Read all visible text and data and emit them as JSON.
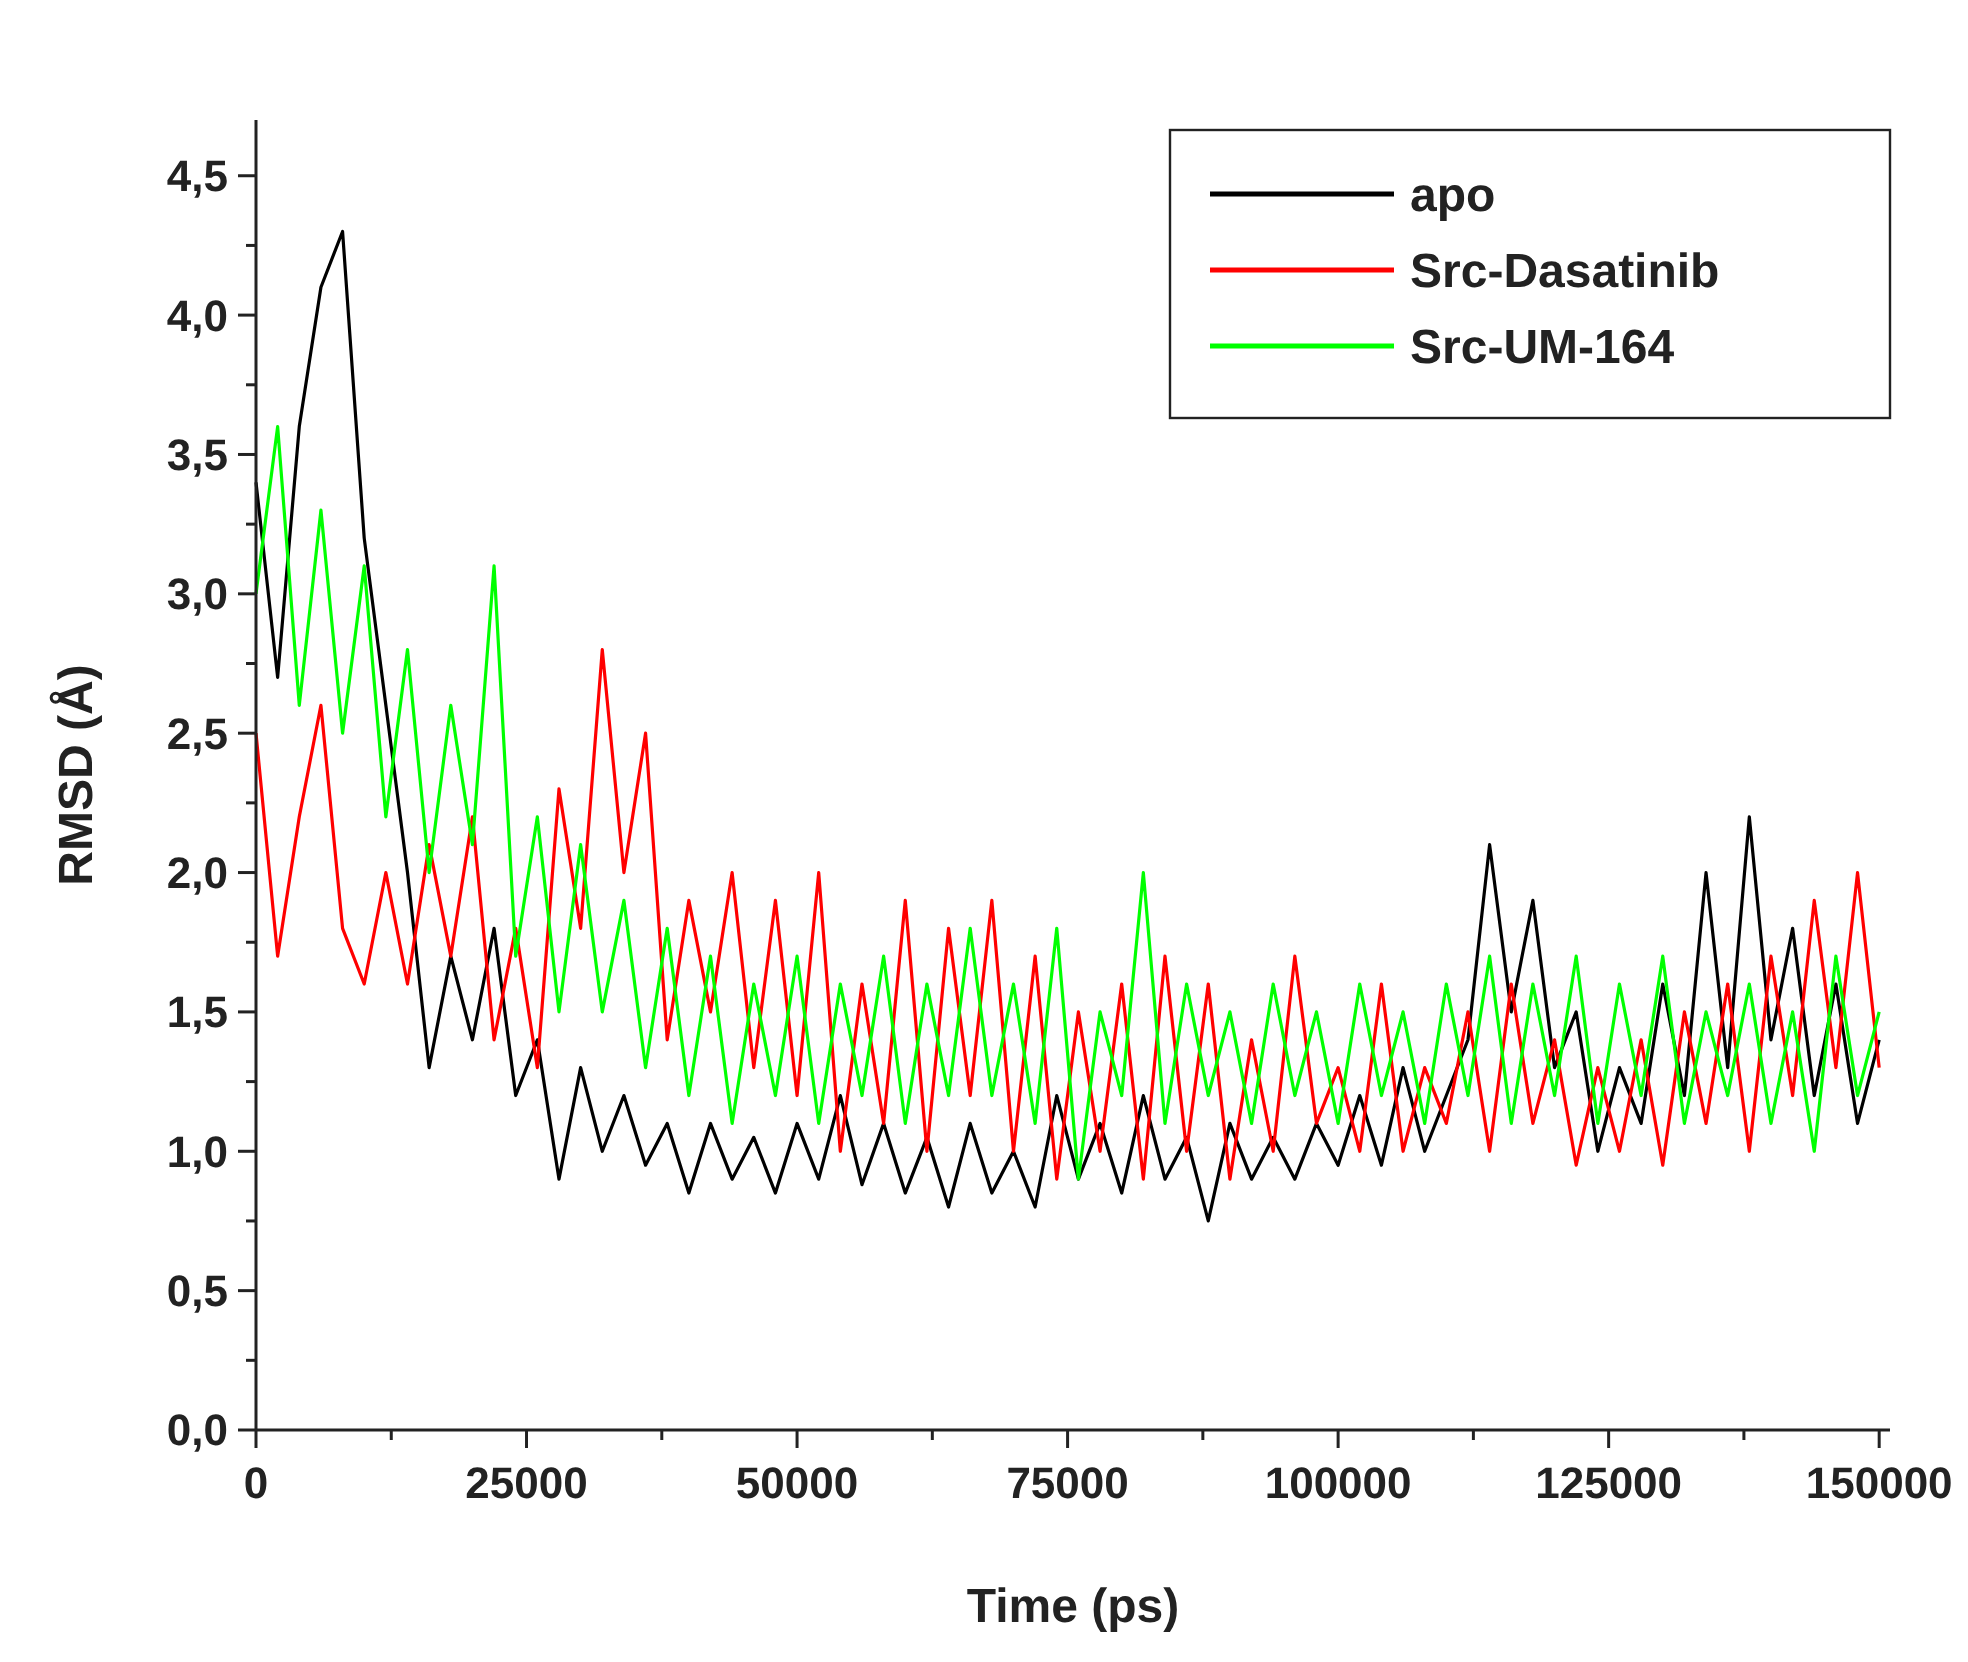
{
  "chart_data": {
    "type": "line",
    "xlabel": "Time (ps)",
    "ylabel": "RMSD (Å)",
    "xlim": [
      0,
      151000
    ],
    "ylim": [
      0,
      4.7
    ],
    "xticks": [
      0,
      {
        "value": 12500,
        "label": null
      },
      25000,
      {
        "value": 37500,
        "label": null
      },
      50000,
      {
        "value": 62500,
        "label": null
      },
      75000,
      {
        "value": 87500,
        "label": null
      },
      100000,
      {
        "value": 112500,
        "label": null
      },
      125000,
      {
        "value": 137500,
        "label": null
      },
      150000
    ],
    "yticks": [
      {
        "value": 0,
        "label": "0,0"
      },
      {
        "value": 0.25,
        "label": null
      },
      {
        "value": 0.5,
        "label": "0,5"
      },
      {
        "value": 0.75,
        "label": null
      },
      {
        "value": 1,
        "label": "1,0"
      },
      {
        "value": 1.25,
        "label": null
      },
      {
        "value": 1.5,
        "label": "1,5"
      },
      {
        "value": 1.75,
        "label": null
      },
      {
        "value": 2,
        "label": "2,0"
      },
      {
        "value": 2.25,
        "label": null
      },
      {
        "value": 2.5,
        "label": "2,5"
      },
      {
        "value": 2.75,
        "label": null
      },
      {
        "value": 3,
        "label": "3,0"
      },
      {
        "value": 3.25,
        "label": null
      },
      {
        "value": 3.5,
        "label": "3,5"
      },
      {
        "value": 3.75,
        "label": null
      },
      {
        "value": 4,
        "label": "4,0"
      },
      {
        "value": 4.25,
        "label": null
      },
      {
        "value": 4.5,
        "label": "4,5"
      }
    ],
    "grid": false,
    "legend": "top right",
    "marker": "none",
    "line_style": "solid",
    "x": [
      0,
      2000,
      4000,
      6000,
      8000,
      10000,
      12000,
      14000,
      16000,
      18000,
      20000,
      22000,
      24000,
      26000,
      28000,
      30000,
      32000,
      34000,
      36000,
      38000,
      40000,
      42000,
      44000,
      46000,
      48000,
      50000,
      52000,
      54000,
      56000,
      58000,
      60000,
      62000,
      64000,
      66000,
      68000,
      70000,
      72000,
      74000,
      76000,
      78000,
      80000,
      82000,
      84000,
      86000,
      88000,
      90000,
      92000,
      94000,
      96000,
      98000,
      100000,
      102000,
      104000,
      106000,
      108000,
      110000,
      112000,
      114000,
      116000,
      118000,
      120000,
      122000,
      124000,
      126000,
      128000,
      130000,
      132000,
      134000,
      136000,
      138000,
      140000,
      142000,
      144000,
      146000,
      148000,
      150000
    ],
    "series": [
      {
        "name": "apo",
        "color": "#000000",
        "values": [
          3.4,
          2.7,
          3.6,
          4.1,
          4.3,
          3.2,
          2.6,
          2.0,
          1.3,
          1.7,
          1.4,
          1.8,
          1.2,
          1.4,
          0.9,
          1.3,
          1.0,
          1.2,
          0.95,
          1.1,
          0.85,
          1.1,
          0.9,
          1.05,
          0.85,
          1.1,
          0.9,
          1.2,
          0.88,
          1.1,
          0.85,
          1.05,
          0.8,
          1.1,
          0.85,
          1.0,
          0.8,
          1.2,
          0.9,
          1.1,
          0.85,
          1.2,
          0.9,
          1.05,
          0.75,
          1.1,
          0.9,
          1.05,
          0.9,
          1.1,
          0.95,
          1.2,
          0.95,
          1.3,
          1.0,
          1.2,
          1.4,
          2.1,
          1.5,
          1.9,
          1.3,
          1.5,
          1.0,
          1.3,
          1.1,
          1.6,
          1.2,
          2.0,
          1.3,
          2.2,
          1.4,
          1.8,
          1.2,
          1.6,
          1.1,
          1.4
        ]
      },
      {
        "name": "Src-Dasatinib",
        "color": "#ff0000",
        "values": [
          2.5,
          1.7,
          2.2,
          2.6,
          1.8,
          1.6,
          2.0,
          1.6,
          2.1,
          1.7,
          2.2,
          1.4,
          1.8,
          1.3,
          2.3,
          1.8,
          2.8,
          2.0,
          2.5,
          1.4,
          1.9,
          1.5,
          2.0,
          1.3,
          1.9,
          1.2,
          2.0,
          1.0,
          1.6,
          1.1,
          1.9,
          1.0,
          1.8,
          1.2,
          1.9,
          1.0,
          1.7,
          0.9,
          1.5,
          1.0,
          1.6,
          0.9,
          1.7,
          1.0,
          1.6,
          0.9,
          1.4,
          1.0,
          1.7,
          1.1,
          1.3,
          1.0,
          1.6,
          1.0,
          1.3,
          1.1,
          1.5,
          1.0,
          1.6,
          1.1,
          1.4,
          0.95,
          1.3,
          1.0,
          1.4,
          0.95,
          1.5,
          1.1,
          1.6,
          1.0,
          1.7,
          1.2,
          1.9,
          1.3,
          2.0,
          1.3
        ]
      },
      {
        "name": "Src-UM-164",
        "color": "#00ff00",
        "values": [
          3.0,
          3.6,
          2.6,
          3.3,
          2.5,
          3.1,
          2.2,
          2.8,
          2.0,
          2.6,
          2.1,
          3.1,
          1.7,
          2.2,
          1.5,
          2.1,
          1.5,
          1.9,
          1.3,
          1.8,
          1.2,
          1.7,
          1.1,
          1.6,
          1.2,
          1.7,
          1.1,
          1.6,
          1.2,
          1.7,
          1.1,
          1.6,
          1.2,
          1.8,
          1.2,
          1.6,
          1.1,
          1.8,
          0.9,
          1.5,
          1.2,
          2.0,
          1.1,
          1.6,
          1.2,
          1.5,
          1.1,
          1.6,
          1.2,
          1.5,
          1.1,
          1.6,
          1.2,
          1.5,
          1.1,
          1.6,
          1.2,
          1.7,
          1.1,
          1.6,
          1.2,
          1.7,
          1.1,
          1.6,
          1.2,
          1.7,
          1.1,
          1.5,
          1.2,
          1.6,
          1.1,
          1.5,
          1.0,
          1.7,
          1.2,
          1.5
        ]
      }
    ]
  }
}
